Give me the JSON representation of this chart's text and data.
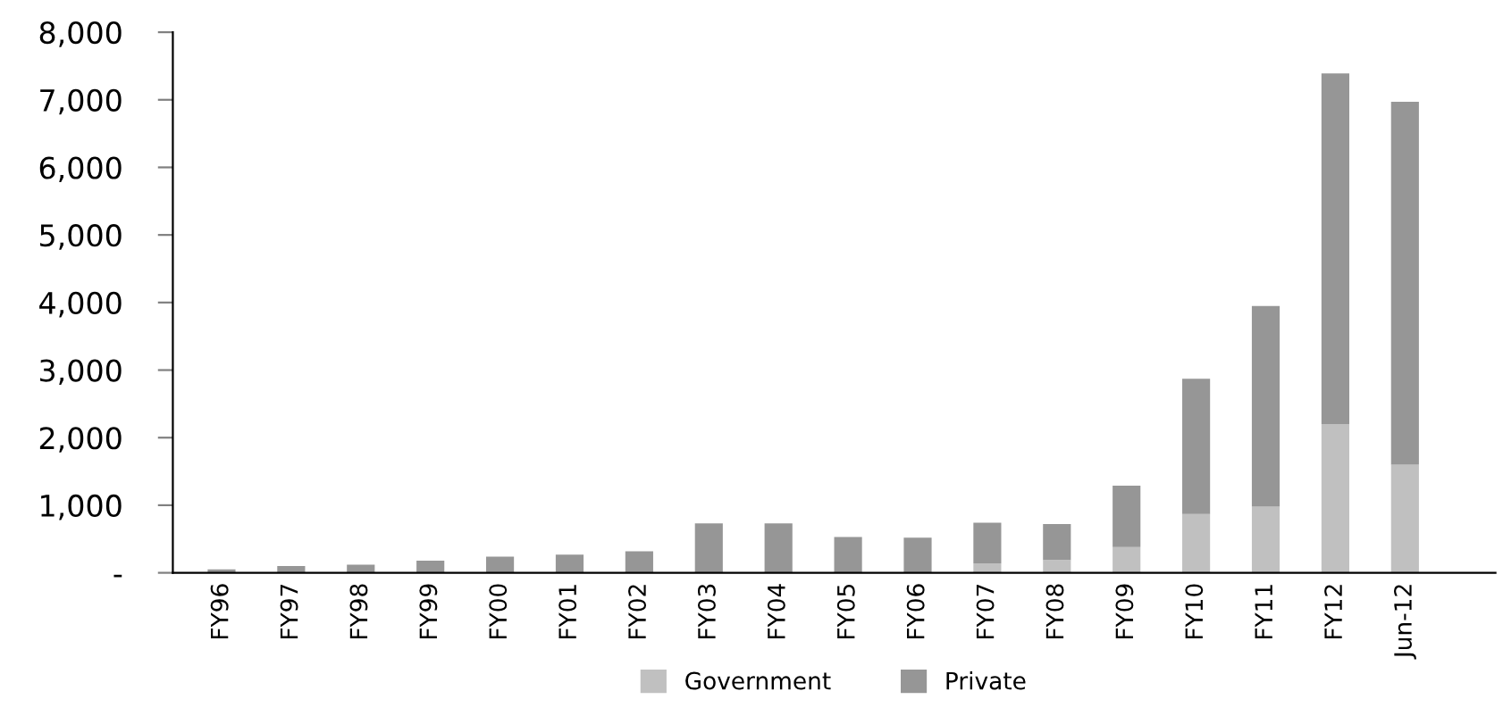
{
  "chart_data": {
    "type": "bar",
    "stacked": true,
    "categories": [
      "FY96",
      "FY97",
      "FY98",
      "FY99",
      "FY00",
      "FY01",
      "FY02",
      "FY03",
      "FY04",
      "FY05",
      "FY06",
      "FY07",
      "FY08",
      "FY09",
      "FY10",
      "FY11",
      "FY12",
      "Jun-12"
    ],
    "series": [
      {
        "name": "Government",
        "color": "#c0c0c0",
        "values": [
          0,
          0,
          0,
          0,
          0,
          0,
          0,
          0,
          0,
          0,
          null,
          140,
          190,
          380,
          870,
          980,
          2200,
          1600
        ]
      },
      {
        "name": "Private",
        "color": "#969696",
        "values": [
          50,
          100,
          120,
          180,
          240,
          270,
          320,
          730,
          730,
          530,
          520,
          600,
          530,
          910,
          2000,
          2970,
          5190,
          5370
        ]
      }
    ],
    "ylim": [
      0,
      8000
    ],
    "yticks": [
      {
        "value": 0,
        "label": "-"
      },
      {
        "value": 1000,
        "label": "1,000"
      },
      {
        "value": 2000,
        "label": "2,000"
      },
      {
        "value": 3000,
        "label": "3,000"
      },
      {
        "value": 4000,
        "label": "4,000"
      },
      {
        "value": 5000,
        "label": "5,000"
      },
      {
        "value": 6000,
        "label": "6,000"
      },
      {
        "value": 7000,
        "label": "7,000"
      },
      {
        "value": 8000,
        "label": "8,000"
      }
    ],
    "grid": false,
    "legend": "bottom"
  }
}
